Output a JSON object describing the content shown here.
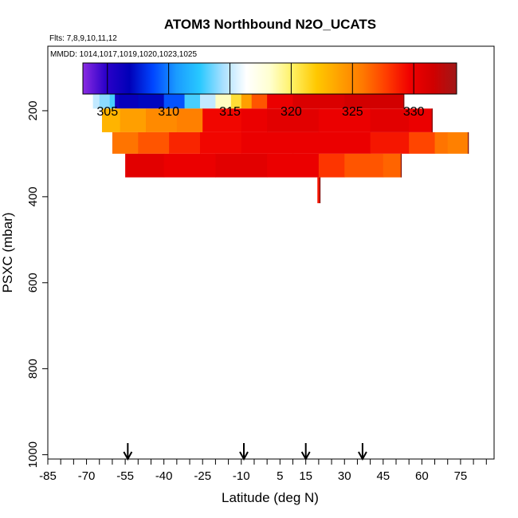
{
  "chart_data": {
    "type": "heatmap",
    "title": "ATOM3 Northbound N2O_UCATS",
    "flights_note": "Flts: 7,8,9,10,11,12",
    "dates_note": "MMDD: 1014,1017,1019,1020,1023,1025",
    "xlabel": "Latitude (deg N)",
    "ylabel": "PSXC (mbar)",
    "xlim": [
      -85,
      88
    ],
    "x_ticks": [
      -85,
      -70,
      -55,
      -40,
      -25,
      -10,
      5,
      15,
      30,
      45,
      60,
      75
    ],
    "x_tick_labels": [
      "-85",
      "-70",
      "-55",
      "-40",
      "-25",
      "-10",
      "5",
      "15",
      "30",
      "45",
      "60",
      "75"
    ],
    "ylim": [
      1010,
      50
    ],
    "y_ticks": [
      200,
      400,
      600,
      800,
      1000
    ],
    "y_tick_labels": [
      "200",
      "400",
      "600",
      "800",
      "1000"
    ],
    "colorbar": {
      "range": [
        303,
        333.5
      ],
      "ticks": [
        305,
        310,
        315,
        320,
        325,
        330
      ],
      "tick_labels": [
        "305",
        "310",
        "315",
        "320",
        "325",
        "330"
      ],
      "colors": [
        "#8a2be2",
        "#2a00c8",
        "#0000b8",
        "#0046ff",
        "#1a9bff",
        "#28c8ff",
        "#a8e0ff",
        "#ffffff",
        "#ffffd0",
        "#fff060",
        "#ffc800",
        "#ffa000",
        "#ff7800",
        "#ff3c00",
        "#f00000",
        "#d00000",
        "#a01818"
      ]
    },
    "arrows_latitude": [
      -54,
      -9,
      15,
      37
    ],
    "bands": [
      {
        "p_top": 150,
        "p_bottom": 195,
        "segments": [
          [
            -67.5,
            -65,
            315
          ],
          [
            -65,
            -61,
            314
          ],
          [
            -61,
            -59,
            313
          ],
          [
            -59,
            -57.5,
            306
          ],
          [
            -57.5,
            -50,
            306.5
          ],
          [
            -50,
            -40,
            307
          ],
          [
            -40,
            -32,
            309
          ],
          [
            -32,
            -26,
            313
          ],
          [
            -26,
            -20,
            315
          ],
          [
            -20,
            -14,
            318.5
          ],
          [
            -14,
            -10,
            321
          ],
          [
            -10,
            -6,
            324
          ],
          [
            -6,
            0,
            327
          ],
          [
            0,
            10,
            330
          ],
          [
            10,
            30,
            331
          ],
          [
            30,
            53,
            331.5
          ]
        ]
      },
      {
        "p_top": 195,
        "p_bottom": 250,
        "segments": [
          [
            -64,
            -57,
            323
          ],
          [
            -57,
            -47,
            324
          ],
          [
            -47,
            -35,
            325
          ],
          [
            -35,
            -25,
            325.5
          ],
          [
            -25,
            -10,
            329.5
          ],
          [
            -10,
            0,
            330
          ],
          [
            0,
            20,
            330.5
          ],
          [
            20,
            40,
            330
          ],
          [
            40,
            55,
            330.5
          ],
          [
            55,
            64,
            330
          ]
        ]
      },
      {
        "p_top": 250,
        "p_bottom": 300,
        "segments": [
          [
            -60,
            -50,
            326
          ],
          [
            -50,
            -38,
            327
          ],
          [
            -38,
            -26,
            328.5
          ],
          [
            -26,
            -10,
            329.5
          ],
          [
            -10,
            10,
            330
          ],
          [
            10,
            20,
            330
          ],
          [
            20,
            40,
            330
          ],
          [
            40,
            55,
            329
          ],
          [
            55,
            65,
            327.5
          ],
          [
            65,
            70,
            326
          ],
          [
            70,
            78,
            325.5
          ]
        ]
      },
      {
        "p_top": 300,
        "p_bottom": 355,
        "segments": [
          [
            -55,
            -40,
            330.5
          ],
          [
            -40,
            -20,
            330
          ],
          [
            -20,
            0,
            330.5
          ],
          [
            0,
            20,
            330
          ],
          [
            20,
            30,
            328
          ],
          [
            30,
            45,
            327
          ],
          [
            45,
            52,
            326.5
          ]
        ]
      },
      {
        "p_top": 355,
        "p_bottom": 415,
        "segments": [
          [
            19.5,
            20.5,
            329
          ]
        ]
      }
    ]
  }
}
